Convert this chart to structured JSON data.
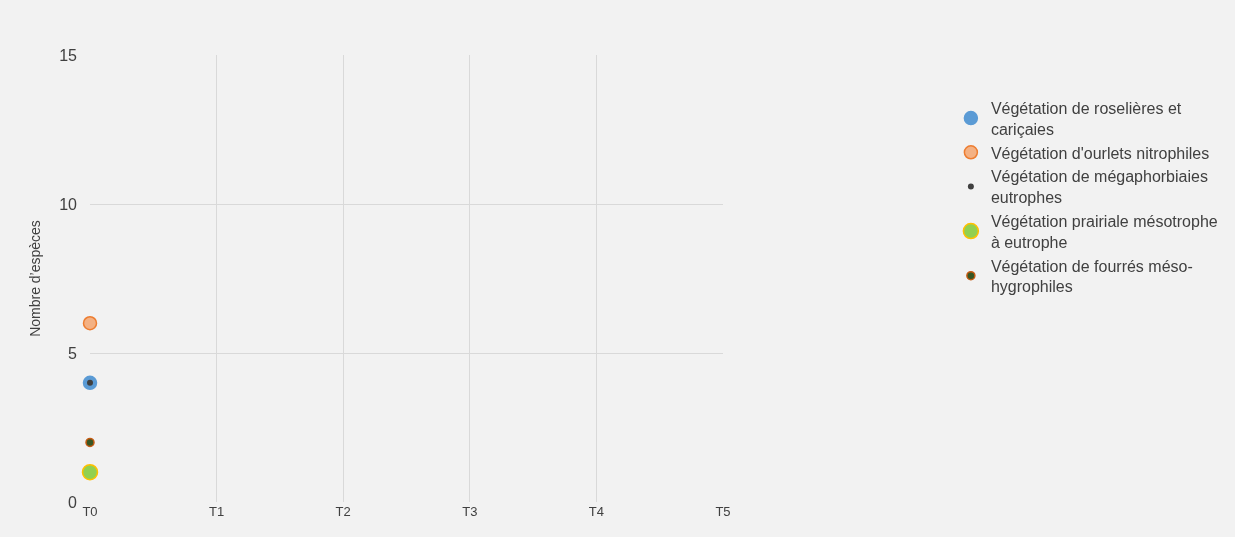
{
  "chart_data": {
    "type": "scatter",
    "ylabel": "Nombre d’espèces",
    "categories": [
      "T0",
      "T1",
      "T2",
      "T3",
      "T4",
      "T5"
    ],
    "series": [
      {
        "name": "Végétation de roselières et cariçaies",
        "color": "#5b9bd5",
        "values": [
          4,
          null,
          null,
          null,
          null,
          null
        ]
      },
      {
        "name": "Végétation d'ourlets nitrophiles",
        "color": "#f4b183",
        "values": [
          6,
          null,
          null,
          null,
          null,
          null
        ]
      },
      {
        "name": "Végétation de mégaphorbiaies eutrophes",
        "color": "#404040",
        "values": [
          4,
          null,
          null,
          null,
          null,
          null
        ]
      },
      {
        "name": "Végétation prairiale mésotrophe à eutrophe",
        "color": "#92d050",
        "values": [
          1,
          null,
          null,
          null,
          null,
          null
        ]
      },
      {
        "name": "Végétation de fourrés méso-hygrophiles",
        "color": "#375623",
        "values": [
          2,
          null,
          null,
          null,
          null,
          null
        ]
      }
    ],
    "ylim": [
      0,
      15
    ],
    "yticks": [
      0,
      5,
      10,
      15
    ],
    "grid": true,
    "legend": "right",
    "marker": "circle"
  }
}
